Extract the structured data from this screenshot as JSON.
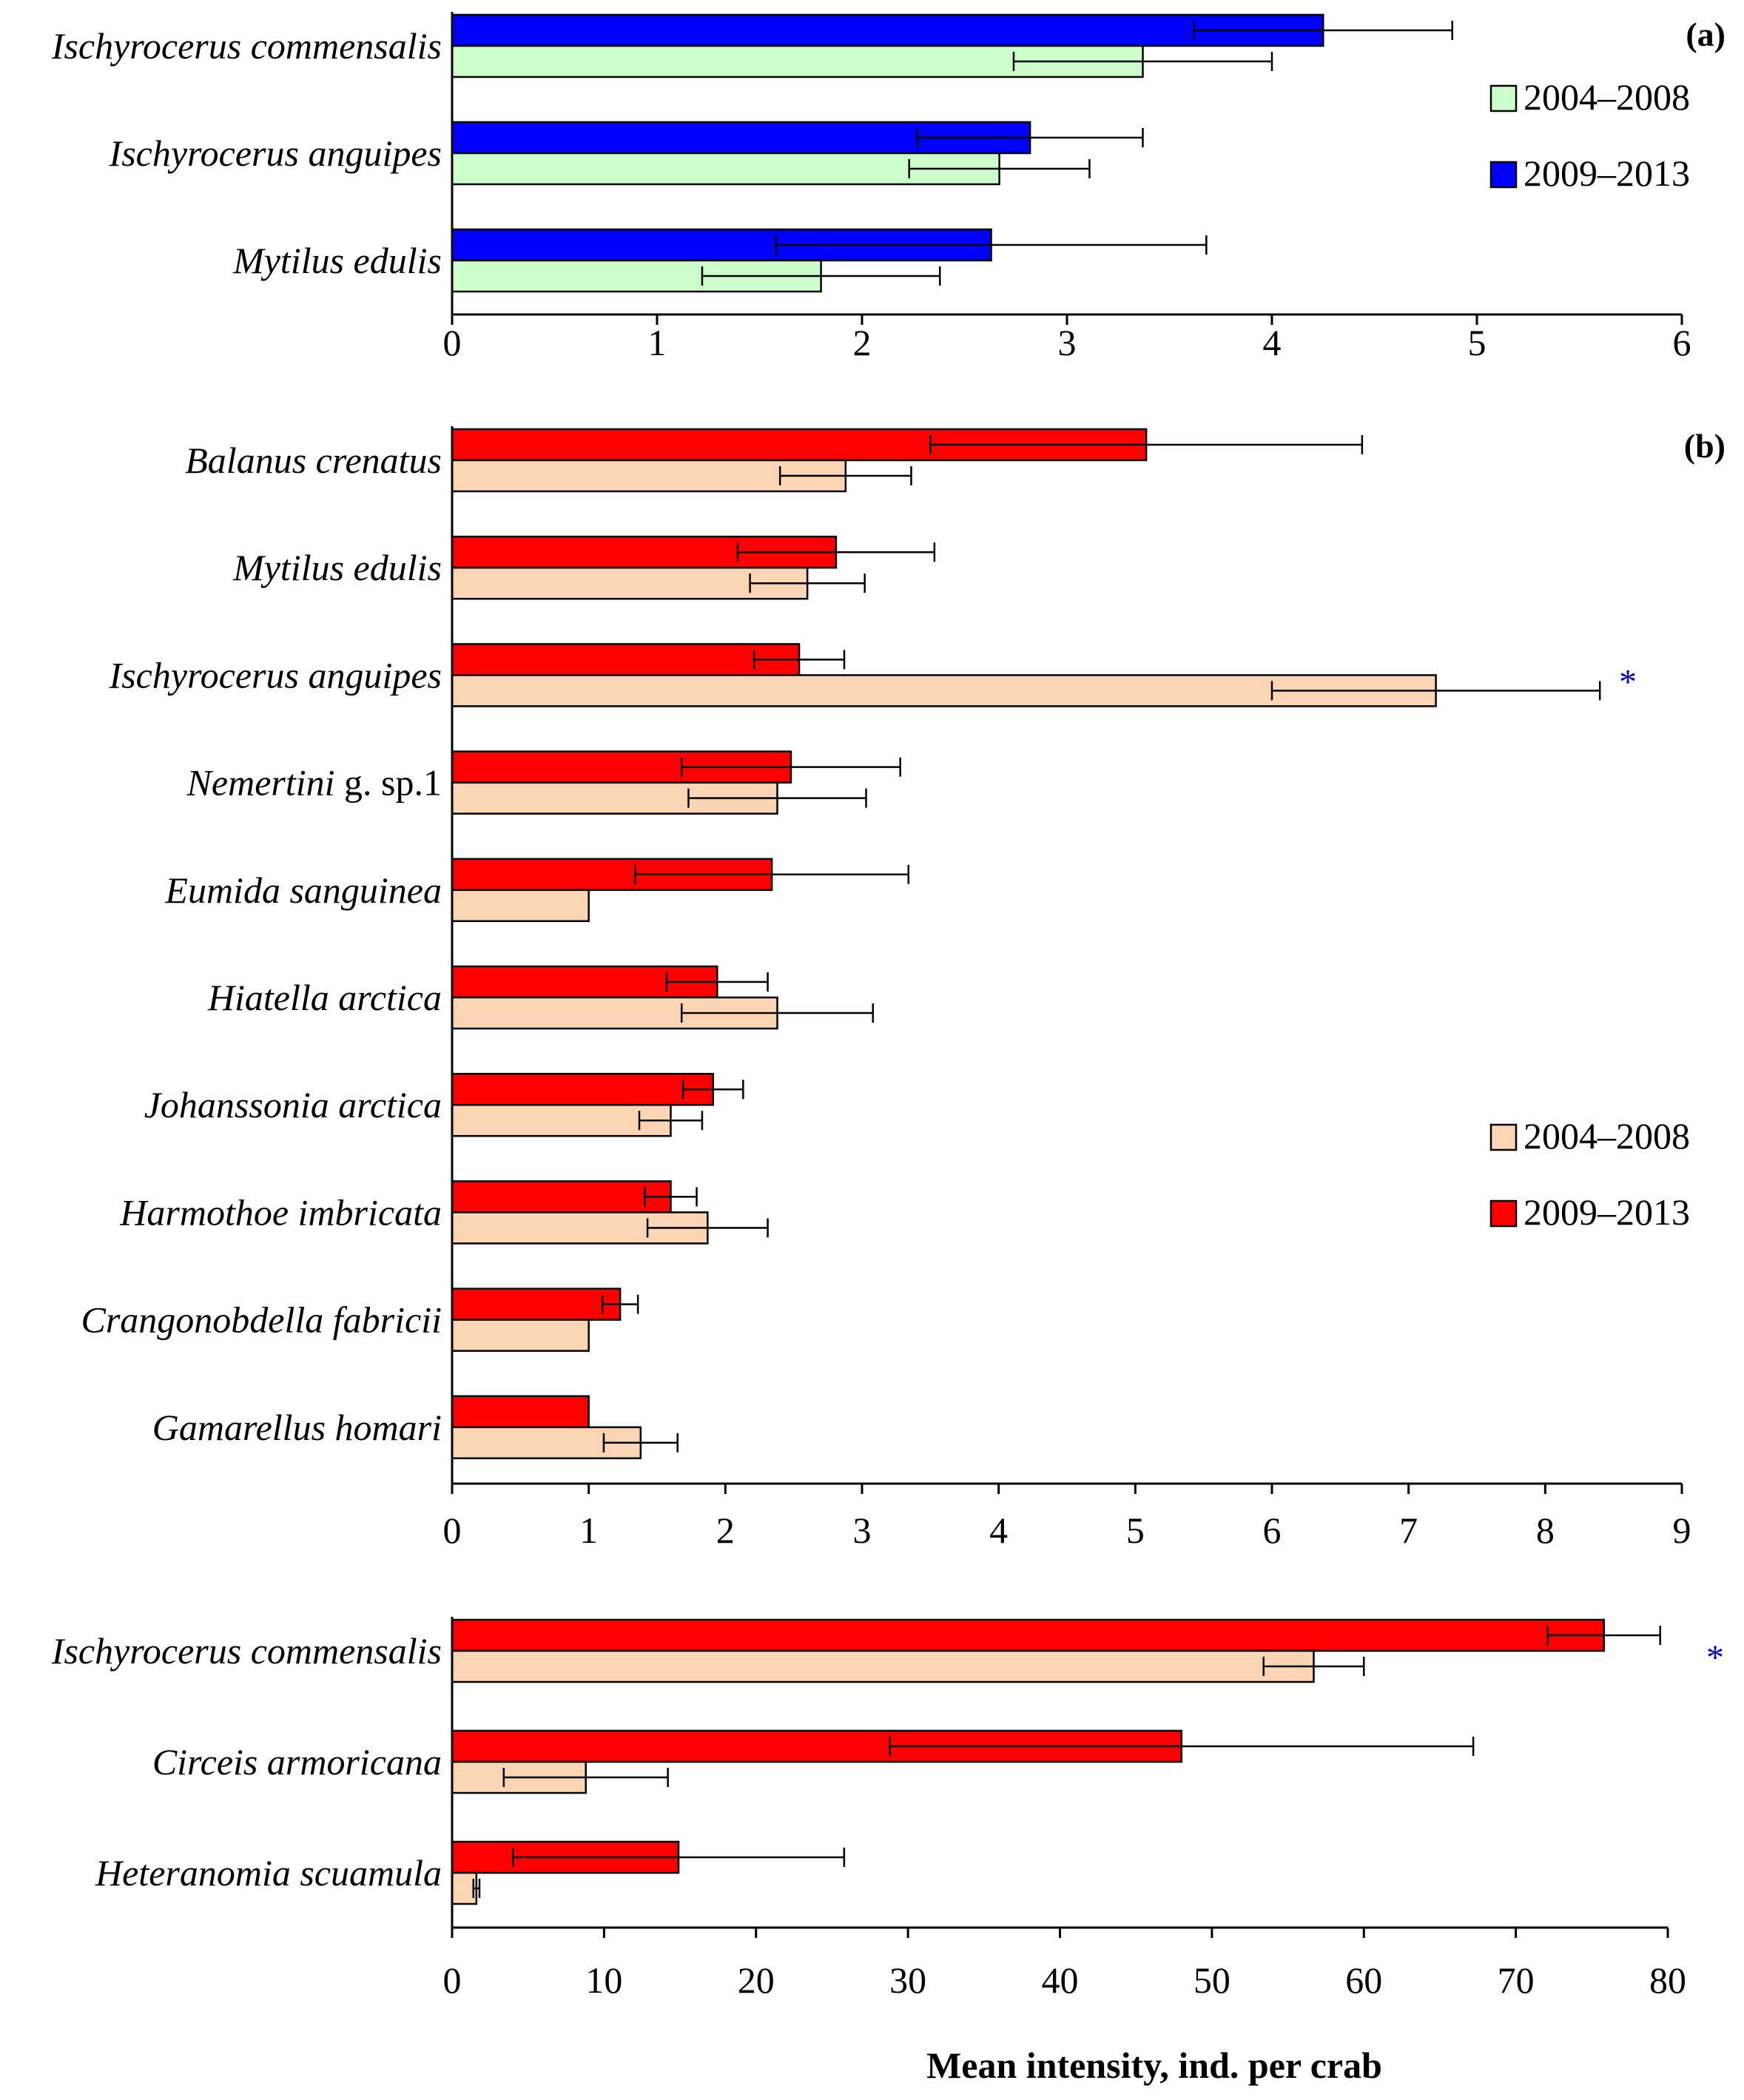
{
  "chart_data": [
    {
      "type": "bar",
      "orientation": "horizontal",
      "panel_label": "(a)",
      "categories": [
        "Ischyrocerus commensalis",
        "Ischyrocerus anguipes",
        "Mytilus edulis"
      ],
      "series": [
        {
          "name": "2009–2013",
          "color": "#0000ff",
          "values": [
            4.25,
            2.82,
            2.63
          ],
          "error": [
            0.63,
            0.55,
            1.05
          ]
        },
        {
          "name": "2004–2008",
          "color": "#ccffcc",
          "values": [
            3.37,
            2.67,
            1.8
          ],
          "error": [
            0.63,
            0.44,
            0.58
          ]
        }
      ],
      "xlim": [
        0,
        6
      ],
      "xticks": [
        "0",
        "1",
        "2",
        "3",
        "4",
        "5",
        "6"
      ],
      "legend": [
        "2004–2008",
        "2009–2013"
      ],
      "legend_position": "top-right",
      "significance": [
        "",
        "",
        ""
      ]
    },
    {
      "type": "bar",
      "orientation": "horizontal",
      "panel_label": "(b)",
      "categories": [
        "Balanus crenatus",
        "Mytilus edulis",
        "Ischyrocerus anguipes",
        "Nemertini g. sp.1",
        "Eumida sanguinea",
        "Hiatella arctica",
        "Johanssonia arctica",
        "Harmothoe imbricata",
        "Crangonobdella fabricii",
        "Gamarellus homari"
      ],
      "series": [
        {
          "name": "2009–2013",
          "color": "#ff0000",
          "values": [
            5.08,
            2.81,
            2.54,
            2.48,
            2.34,
            1.94,
            1.91,
            1.6,
            1.23,
            1.0
          ],
          "error": [
            1.58,
            0.72,
            0.33,
            0.8,
            1.0,
            0.37,
            0.22,
            0.19,
            0.13,
            0
          ]
        },
        {
          "name": "2004–2008",
          "color": "#fcd5b4",
          "values": [
            2.88,
            2.6,
            7.2,
            2.38,
            1.0,
            2.38,
            1.6,
            1.87,
            1.0,
            1.38
          ],
          "error": [
            0.48,
            0.42,
            1.2,
            0.65,
            0,
            0.7,
            0.23,
            0.44,
            0,
            0.27
          ]
        }
      ],
      "xlim": [
        0,
        9
      ],
      "xticks": [
        "0",
        "1",
        "2",
        "3",
        "4",
        "5",
        "6",
        "7",
        "8",
        "9"
      ],
      "legend": [
        "2004–2008",
        "2009–2013"
      ],
      "legend_position": "middle-right",
      "significance": [
        "",
        "",
        "*",
        "",
        "",
        "",
        "",
        "",
        "",
        ""
      ]
    },
    {
      "type": "bar",
      "orientation": "horizontal",
      "panel_label": "",
      "categories": [
        "Ischyrocerus commensalis",
        "Circeis armoricana",
        "Heteranomia scuamula"
      ],
      "series": [
        {
          "name": "2009–2013",
          "color": "#ff0000",
          "values": [
            75.8,
            48.0,
            14.9
          ],
          "error": [
            3.7,
            19.2,
            10.9
          ]
        },
        {
          "name": "2004–2008",
          "color": "#fcd5b4",
          "values": [
            56.7,
            8.8,
            1.6
          ],
          "error": [
            3.3,
            5.4,
            0.2
          ]
        }
      ],
      "xlim": [
        0,
        80
      ],
      "xticks": [
        "0",
        "10",
        "20",
        "30",
        "40",
        "50",
        "60",
        "70",
        "80"
      ],
      "significance": [
        "*",
        "",
        ""
      ]
    }
  ],
  "xlabel": "Mean intensity, ind. per crab",
  "significance_color": "#0000cc"
}
